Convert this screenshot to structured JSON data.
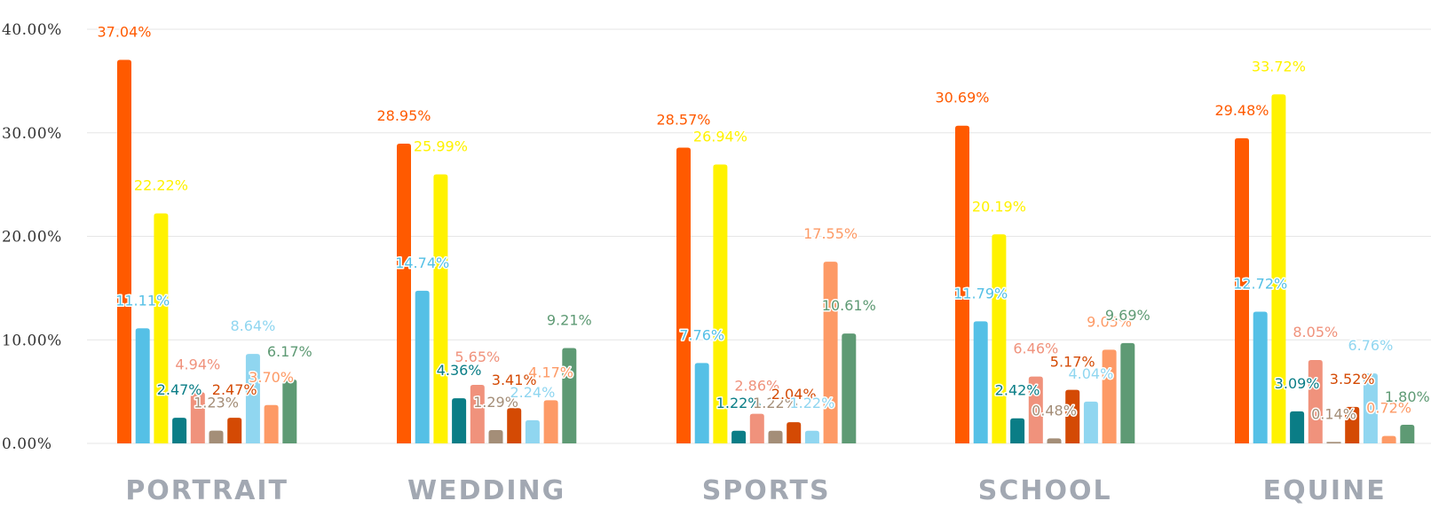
{
  "chart_data": {
    "type": "bar",
    "categories": [
      "PORTRAIT",
      "WEDDING",
      "SPORTS",
      "SCHOOL",
      "EQUINE"
    ],
    "ylim": [
      0,
      40
    ],
    "y_ticks": [
      "0.00%",
      "10.00%",
      "20.00%",
      "30.00%",
      "40.00%"
    ],
    "grid": true,
    "legend": "none",
    "series": [
      {
        "color": "#ff5a00",
        "values": [
          37.04,
          28.95,
          28.57,
          30.69,
          29.48
        ],
        "labels": [
          "37.04%",
          "28.95%",
          "28.57%",
          "30.69%",
          "29.48%"
        ]
      },
      {
        "color": "#55c0e6",
        "values": [
          11.11,
          14.74,
          7.76,
          11.79,
          12.72
        ],
        "labels": [
          "11.11%",
          "14.74%",
          "7.76%",
          "11.79%",
          "12.72%"
        ]
      },
      {
        "color": "#fff200",
        "values": [
          22.22,
          25.99,
          26.94,
          20.19,
          33.72
        ],
        "labels": [
          "22.22%",
          "25.99%",
          "26.94%",
          "20.19%",
          "33.72%"
        ]
      },
      {
        "color": "#0a7d86",
        "values": [
          2.47,
          4.36,
          1.22,
          2.42,
          3.09
        ],
        "labels": [
          "2.47%",
          "4.36%",
          "1.22%",
          "2.42%",
          "3.09%"
        ]
      },
      {
        "color": "#f0927c",
        "values": [
          4.94,
          5.65,
          2.86,
          6.46,
          8.05
        ],
        "labels": [
          "4.94%",
          "5.65%",
          "2.86%",
          "6.46%",
          "8.05%"
        ]
      },
      {
        "color": "#a48e78",
        "values": [
          1.23,
          1.29,
          1.22,
          0.48,
          0.14
        ],
        "labels": [
          "1.23%",
          "1.29%",
          "1.22%",
          "0.48%",
          "0.14%"
        ]
      },
      {
        "color": "#d44a04",
        "values": [
          2.47,
          3.41,
          2.04,
          5.17,
          3.52
        ],
        "labels": [
          "2.47%",
          "3.41%",
          "2.04%",
          "5.17%",
          "3.52%"
        ]
      },
      {
        "color": "#90d6f0",
        "values": [
          8.64,
          2.24,
          1.22,
          4.04,
          6.76
        ],
        "labels": [
          "8.64%",
          "2.24%",
          "1.22%",
          "4.04%",
          "6.76%"
        ]
      },
      {
        "color": "#fd9a66",
        "values": [
          3.7,
          4.17,
          17.55,
          9.05,
          0.72
        ],
        "labels": [
          "3.70%",
          "4.17%",
          "17.55%",
          "9.05%",
          "0.72%"
        ]
      },
      {
        "color": "#5e9a74",
        "values": [
          6.17,
          9.21,
          10.61,
          9.69,
          1.8
        ],
        "labels": [
          "6.17%",
          "9.21%",
          "10.61%",
          "9.69%",
          "1.80%"
        ]
      }
    ]
  }
}
